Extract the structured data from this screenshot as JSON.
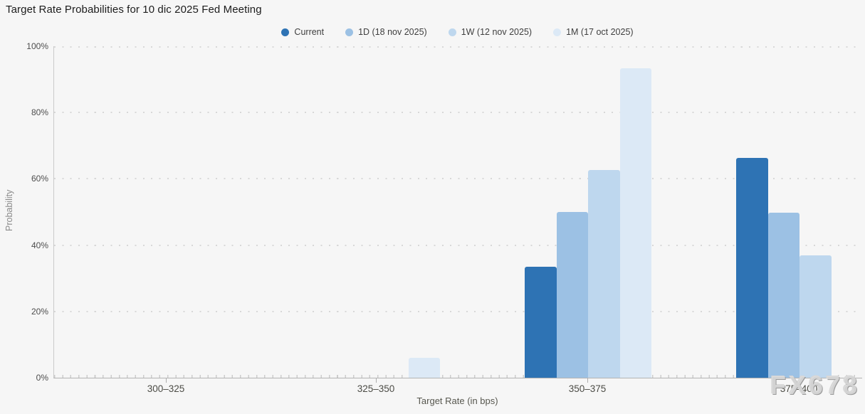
{
  "title": "Target Rate Probabilities for 10 dic 2025 Fed Meeting",
  "watermark": "FX678",
  "colors": {
    "background": "#f6f6f6",
    "axis_line": "#b3b3b3",
    "left_spine": "#cacaca",
    "grid_dots": "#d8d8d8",
    "series_current": "#2e73b4",
    "series_1d": "#9cc1e4",
    "series_1w": "#bed7ee",
    "series_1m": "#dce9f6"
  },
  "chart_data": {
    "type": "bar",
    "title": "Target Rate Probabilities for 10 dic 2025 Fed Meeting",
    "xlabel": "Target Rate (in bps)",
    "ylabel": "Probability",
    "ylim": [
      0,
      100
    ],
    "ytick_labels": [
      "0%",
      "20%",
      "40%",
      "60%",
      "80%",
      "100%"
    ],
    "grid": "dotted horizontal gridlines every 20%",
    "legend_position": "top-center",
    "categories": [
      "300–325",
      "325–350",
      "350–375",
      "375–400"
    ],
    "series": [
      {
        "name": "Current",
        "color": "#2e73b4",
        "values": [
          0,
          0,
          33.5,
          66.3
        ]
      },
      {
        "name": "1D (18 nov 2025)",
        "color": "#9cc1e4",
        "values": [
          0,
          0,
          50.0,
          49.8
        ]
      },
      {
        "name": "1W (12 nov 2025)",
        "color": "#bed7ee",
        "values": [
          0,
          0,
          62.7,
          36.9
        ]
      },
      {
        "name": "1M (17 oct 2025)",
        "color": "#dce9f6",
        "values": [
          0,
          6.0,
          93.3,
          0
        ]
      }
    ]
  }
}
